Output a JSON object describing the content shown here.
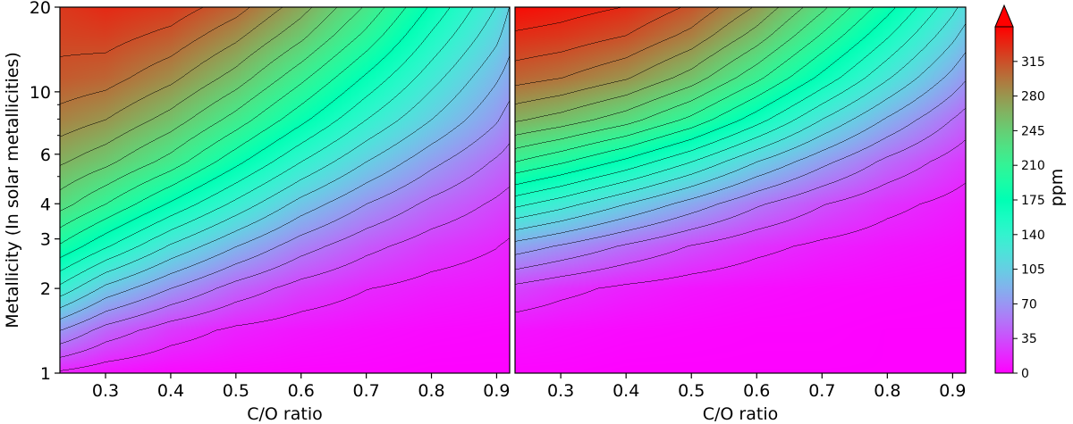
{
  "chart_data": [
    {
      "type": "heatmap",
      "subtype": "filled-contour",
      "xlabel": "C/O ratio",
      "ylabel": "Metallicity (In solar metallicities)",
      "xlim": [
        0.23,
        0.92
      ],
      "ylim": [
        1,
        20
      ],
      "yscale": "log",
      "xticks": [
        "0.3",
        "0.4",
        "0.5",
        "0.6",
        "0.7",
        "0.8",
        "0.9"
      ],
      "yticks": [
        "1",
        "2",
        "3",
        "4",
        "6",
        "10",
        "20"
      ],
      "contour_levels": [
        0,
        17.5,
        35,
        52.5,
        70,
        87.5,
        105,
        122.5,
        140,
        157.5,
        175,
        192.5,
        210,
        227.5,
        245,
        262.5,
        280,
        297.5,
        315,
        332.5
      ],
      "value_grid": {
        "x": [
          0.23,
          0.3,
          0.4,
          0.5,
          0.6,
          0.7,
          0.8,
          0.9,
          0.92
        ],
        "log10_metallicity": [
          0,
          0.15,
          0.3,
          0.45,
          0.6,
          0.75,
          0.9,
          1.05,
          1.2,
          1.301
        ],
        "ppm": [
          [
            15,
            8,
            4,
            3,
            2,
            2,
            1,
            1,
            1
          ],
          [
            70,
            45,
            25,
            14,
            9,
            6,
            4,
            3,
            3
          ],
          [
            135,
            100,
            70,
            45,
            28,
            18,
            12,
            9,
            8
          ],
          [
            190,
            160,
            120,
            88,
            60,
            40,
            26,
            18,
            15
          ],
          [
            235,
            210,
            172,
            135,
            98,
            70,
            48,
            32,
            28
          ],
          [
            265,
            250,
            220,
            180,
            140,
            105,
            75,
            50,
            45
          ],
          [
            290,
            280,
            255,
            220,
            180,
            140,
            105,
            72,
            62
          ],
          [
            310,
            305,
            285,
            255,
            215,
            172,
            130,
            90,
            80
          ],
          [
            320,
            322,
            310,
            285,
            250,
            205,
            155,
            110,
            95
          ],
          [
            325,
            332,
            325,
            305,
            270,
            225,
            172,
            122,
            105
          ]
        ]
      }
    },
    {
      "type": "heatmap",
      "subtype": "filled-contour",
      "xlabel": "C/O ratio",
      "xlim": [
        0.23,
        0.92
      ],
      "ylim": [
        1,
        20
      ],
      "yscale": "log",
      "xticks": [
        "0.3",
        "0.4",
        "0.5",
        "0.6",
        "0.7",
        "0.8",
        "0.9"
      ],
      "contour_levels": [
        0,
        17.5,
        35,
        52.5,
        70,
        87.5,
        105,
        122.5,
        140,
        157.5,
        175,
        192.5,
        210,
        227.5,
        245,
        262.5,
        280,
        297.5,
        315,
        332.5
      ],
      "value_grid": {
        "x": [
          0.23,
          0.3,
          0.4,
          0.5,
          0.6,
          0.7,
          0.8,
          0.9,
          0.92
        ],
        "log10_metallicity": [
          0,
          0.15,
          0.3,
          0.45,
          0.6,
          0.75,
          0.9,
          1.05,
          1.2,
          1.301
        ],
        "ppm": [
          [
            2,
            2,
            1,
            1,
            1,
            1,
            1,
            1,
            1
          ],
          [
            8,
            6,
            4,
            3,
            2,
            2,
            1,
            1,
            1
          ],
          [
            30,
            22,
            14,
            9,
            6,
            4,
            3,
            2,
            2
          ],
          [
            80,
            68,
            50,
            34,
            22,
            14,
            9,
            6,
            5
          ],
          [
            145,
            130,
            105,
            80,
            55,
            36,
            22,
            13,
            11
          ],
          [
            210,
            195,
            170,
            140,
            105,
            75,
            48,
            28,
            24
          ],
          [
            265,
            255,
            235,
            205,
            165,
            122,
            85,
            52,
            45
          ],
          [
            305,
            298,
            282,
            255,
            215,
            170,
            125,
            82,
            72
          ],
          [
            330,
            326,
            315,
            292,
            255,
            208,
            160,
            110,
            98
          ],
          [
            345,
            340,
            332,
            312,
            278,
            232,
            182,
            128,
            115
          ]
        ]
      }
    }
  ],
  "colorbar": {
    "label": "ppm",
    "range": [
      0,
      350
    ],
    "ticks": [
      "0",
      "35",
      "70",
      "105",
      "140",
      "175",
      "210",
      "245",
      "280",
      "315"
    ],
    "extend": "max",
    "colormap": "rainbow"
  }
}
